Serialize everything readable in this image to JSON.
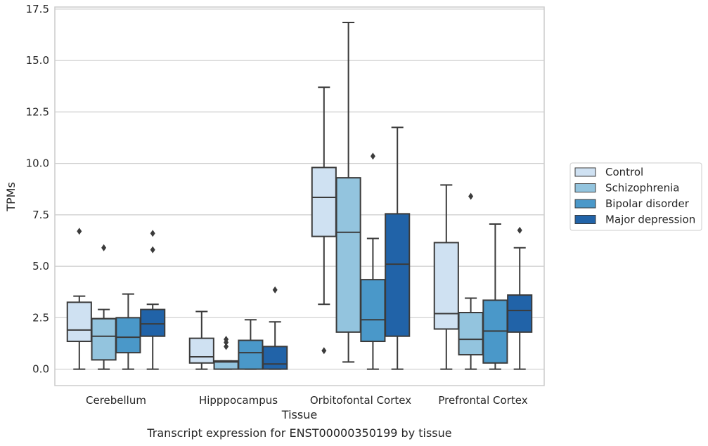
{
  "chart_data": {
    "type": "box",
    "xlabel": "Tissue",
    "ylabel": "TPMs",
    "caption": "Transcript expression for ENST00000350199 by tissue",
    "ylim": [
      -0.8,
      17.6
    ],
    "yticks": [
      "0.0",
      "2.5",
      "5.0",
      "7.5",
      "10.0",
      "12.5",
      "15.0",
      "17.5"
    ],
    "grid": "horizontal",
    "legend_position": "right",
    "categories": [
      "Cerebellum",
      "Hipppocampus",
      "Orbitofontal Cortex",
      "Prefrontal Cortex"
    ],
    "series": [
      {
        "name": "Control",
        "color": "#cfe1f2",
        "boxes": [
          {
            "lw": 0.0,
            "q1": 1.35,
            "med": 1.9,
            "q3": 3.25,
            "uw": 3.55,
            "fliers": [
              6.7
            ]
          },
          {
            "lw": 0.0,
            "q1": 0.3,
            "med": 0.6,
            "q3": 1.5,
            "uw": 2.8,
            "fliers": []
          },
          {
            "lw": 3.15,
            "q1": 6.45,
            "med": 8.35,
            "q3": 9.8,
            "uw": 13.7,
            "fliers": [
              0.9
            ]
          },
          {
            "lw": 0.0,
            "q1": 1.95,
            "med": 2.7,
            "q3": 6.15,
            "uw": 8.95,
            "fliers": []
          }
        ]
      },
      {
        "name": "Schizophrenia",
        "color": "#93c4de",
        "boxes": [
          {
            "lw": 0.0,
            "q1": 0.45,
            "med": 1.6,
            "q3": 2.45,
            "uw": 2.9,
            "fliers": [
              5.9
            ]
          },
          {
            "lw": 0.0,
            "q1": 0.0,
            "med": 0.35,
            "q3": 0.4,
            "uw": 0.4,
            "fliers": [
              1.1,
              1.3,
              1.45
            ]
          },
          {
            "lw": 0.35,
            "q1": 1.8,
            "med": 6.65,
            "q3": 9.3,
            "uw": 16.85,
            "fliers": []
          },
          {
            "lw": 0.0,
            "q1": 0.7,
            "med": 1.45,
            "q3": 2.75,
            "uw": 3.45,
            "fliers": [
              8.4
            ]
          }
        ]
      },
      {
        "name": "Bipolar disorder",
        "color": "#4a98c9",
        "boxes": [
          {
            "lw": 0.0,
            "q1": 0.8,
            "med": 1.55,
            "q3": 2.5,
            "uw": 3.65,
            "fliers": []
          },
          {
            "lw": 0.0,
            "q1": 0.0,
            "med": 0.8,
            "q3": 1.4,
            "uw": 2.4,
            "fliers": []
          },
          {
            "lw": 0.0,
            "q1": 1.35,
            "med": 2.4,
            "q3": 4.35,
            "uw": 6.35,
            "fliers": [
              10.35
            ]
          },
          {
            "lw": 0.0,
            "q1": 0.3,
            "med": 1.85,
            "q3": 3.35,
            "uw": 7.05,
            "fliers": []
          }
        ]
      },
      {
        "name": "Major depression",
        "color": "#2163a8",
        "boxes": [
          {
            "lw": 0.0,
            "q1": 1.6,
            "med": 2.2,
            "q3": 2.9,
            "uw": 3.15,
            "fliers": [
              5.8,
              6.6
            ]
          },
          {
            "lw": 0.0,
            "q1": 0.0,
            "med": 0.25,
            "q3": 1.1,
            "uw": 2.3,
            "fliers": [
              3.85
            ]
          },
          {
            "lw": 0.0,
            "q1": 1.6,
            "med": 5.1,
            "q3": 7.55,
            "uw": 11.75,
            "fliers": []
          },
          {
            "lw": 0.0,
            "q1": 1.8,
            "med": 2.85,
            "q3": 3.6,
            "uw": 5.9,
            "fliers": [
              6.75
            ]
          }
        ]
      }
    ]
  }
}
